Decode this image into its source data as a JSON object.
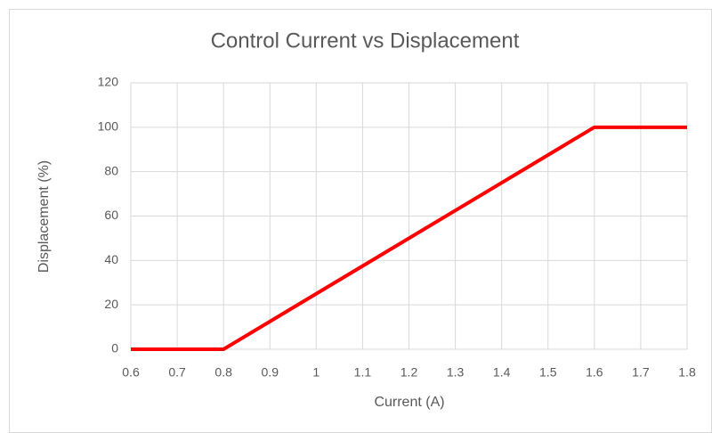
{
  "chart_data": {
    "type": "line",
    "title": "Control Current vs Displacement",
    "x_label": "Current (A)",
    "y_label": "Displacement (%)",
    "x": [
      0.6,
      0.8,
      1.6,
      1.8
    ],
    "series": [
      {
        "name": "Displacement",
        "color": "#ff0000",
        "values": [
          0,
          0,
          100,
          100
        ]
      }
    ],
    "xlim": [
      0.6,
      1.8
    ],
    "xticks": [
      0.6,
      0.7,
      0.8,
      0.9,
      1,
      1.1,
      1.2,
      1.3,
      1.4,
      1.5,
      1.6,
      1.7,
      1.8
    ],
    "ylim": [
      0,
      120
    ],
    "yticks": [
      0,
      20,
      40,
      60,
      80,
      100,
      120
    ],
    "grid": true
  }
}
